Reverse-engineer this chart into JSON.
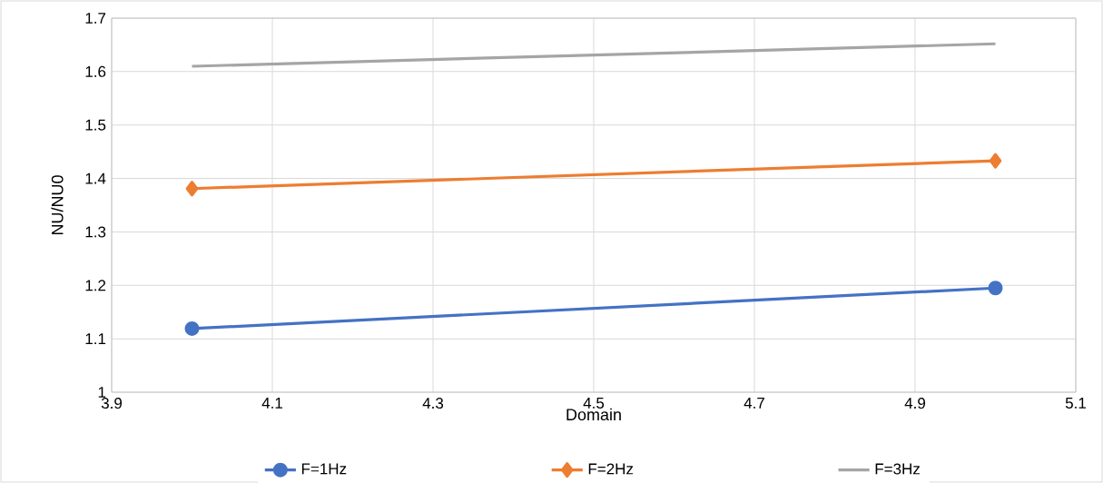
{
  "chart_data": {
    "type": "line",
    "xlabel": "Domain",
    "ylabel": "NU/NU0",
    "x": [
      4,
      5
    ],
    "series": [
      {
        "name": "F=1Hz",
        "color": "#4472c4",
        "marker": "circle",
        "values": [
          1.119,
          1.195
        ]
      },
      {
        "name": "F=2Hz",
        "color": "#ed7d31",
        "marker": "diamond",
        "values": [
          1.381,
          1.433
        ]
      },
      {
        "name": "F=3Hz",
        "color": "#a5a5a5",
        "marker": "none",
        "values": [
          1.61,
          1.652
        ]
      }
    ],
    "xlim": [
      3.9,
      5.1
    ],
    "xticks": [
      3.9,
      4.1,
      4.3,
      4.5,
      4.7,
      4.9,
      5.1
    ],
    "ylim": [
      1,
      1.7
    ],
    "yticks": [
      1,
      1.1,
      1.2,
      1.3,
      1.4,
      1.5,
      1.6,
      1.7
    ],
    "grid": true,
    "legend": "bottom"
  }
}
